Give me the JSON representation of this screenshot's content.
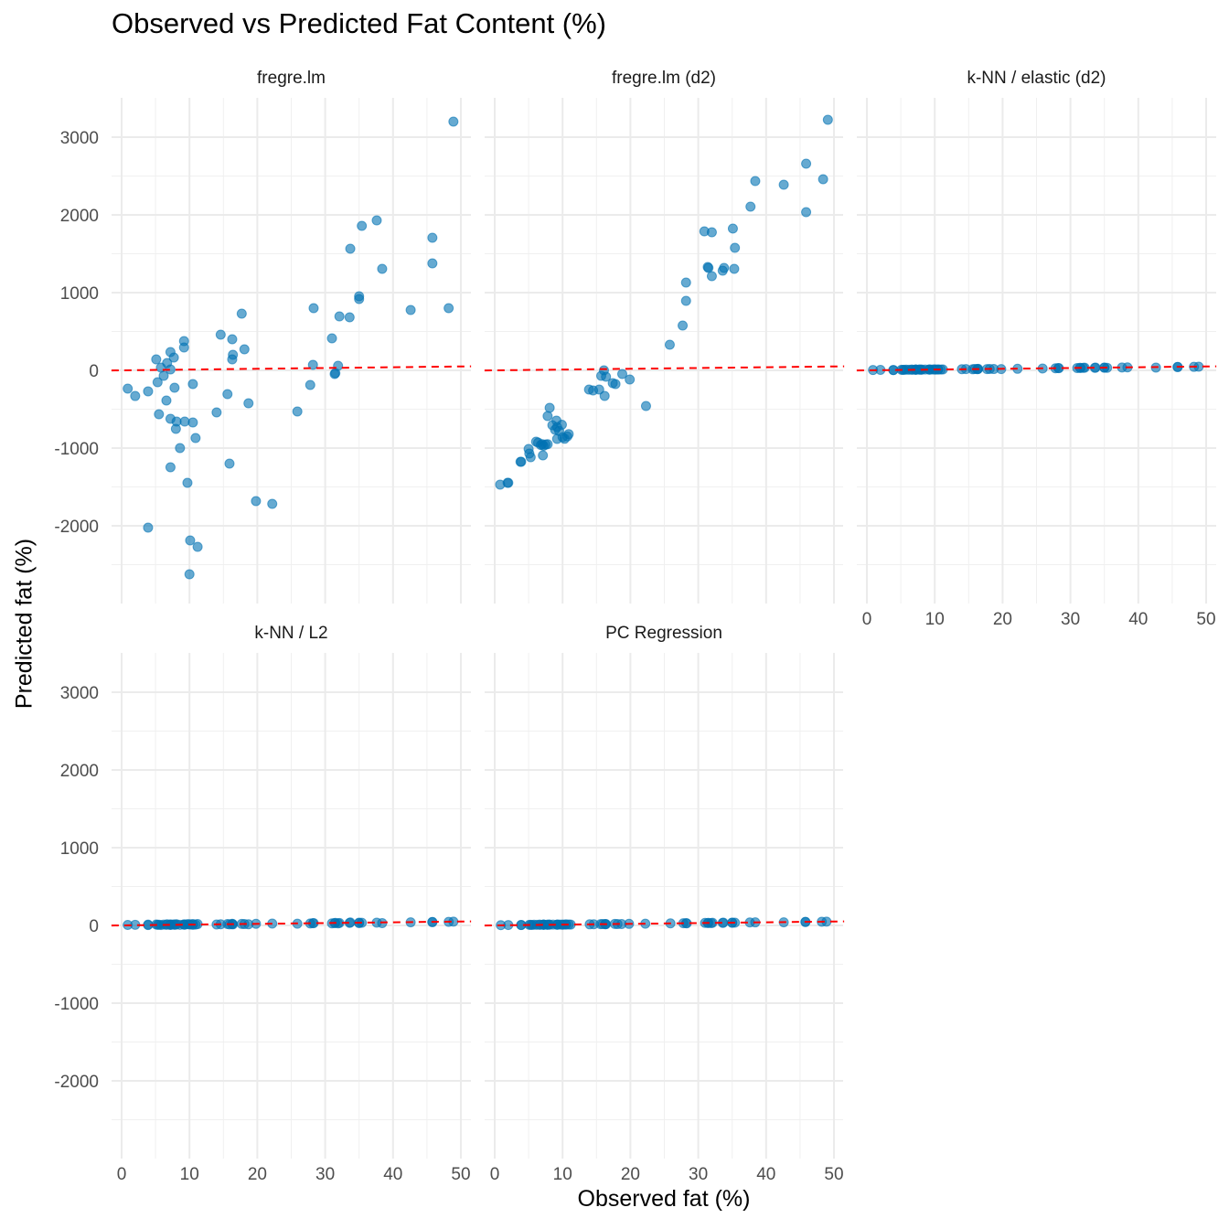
{
  "chart_data": {
    "type": "scatter",
    "title": "Observed vs Predicted Fat Content (%)",
    "xlabel": "Observed fat (%)",
    "ylabel": "Predicted fat (%)",
    "xlim": [
      -1.5,
      51.5
    ],
    "ylim": [
      -3000,
      3506
    ],
    "x_ticks": [
      0,
      10,
      20,
      30,
      40,
      50
    ],
    "y_ticks": [
      -2000,
      -1000,
      0,
      1000,
      2000,
      3000
    ],
    "grid": true,
    "reference_line": {
      "type": "y = x",
      "color": "#FF0000",
      "style": "dashed"
    },
    "point_color": "#0072B2",
    "observed": [
      0.9,
      2.0,
      3.9,
      3.9,
      5.1,
      5.3,
      5.5,
      5.8,
      6.2,
      6.6,
      6.7,
      7.2,
      7.2,
      7.2,
      7.2,
      7.7,
      7.8,
      8.0,
      8.1,
      8.6,
      9.2,
      9.2,
      9.3,
      9.7,
      10.1,
      10.0,
      10.5,
      10.5,
      10.9,
      11.2,
      14.0,
      14.6,
      15.6,
      15.9,
      16.3,
      16.3,
      16.4,
      17.7,
      18.1,
      18.7,
      19.8,
      22.2,
      25.9,
      27.8,
      28.2,
      28.3,
      31.0,
      31.4,
      31.5,
      31.9,
      32.1,
      33.6,
      33.7,
      35.0,
      35.0,
      35.4,
      37.6,
      38.4,
      42.6,
      45.8,
      45.8,
      48.2,
      48.9
    ],
    "panels": [
      {
        "name": "fregre.lm",
        "predicted": [
          -235,
          -330,
          -270,
          -2024,
          141,
          -153,
          -565,
          35,
          -71,
          -388,
          94,
          235,
          12,
          -1247,
          -624,
          165,
          -224,
          -753,
          -659,
          -1000,
          376,
          294,
          -659,
          -1447,
          -2188,
          -2624,
          -671,
          -176,
          -871,
          -2271,
          -541,
          459,
          -306,
          -1200,
          400,
          141,
          200,
          729,
          271,
          -424,
          -1682,
          -1718,
          -529,
          -188,
          71,
          800,
          412,
          -47,
          -35,
          59,
          694,
          682,
          1565,
          953,
          918,
          1859,
          1929,
          1306,
          776,
          1376,
          1706,
          800,
          3200
        ]
      },
      {
        "name": "fregre.lm (d2)",
        "observed": [
          0.8,
          1.9,
          2.0,
          3.8,
          3.9,
          5.0,
          5.1,
          5.3,
          6.1,
          6.4,
          6.8,
          7.0,
          7.2,
          7.5,
          7.8,
          7.1,
          7.8,
          8.1,
          8.5,
          8.9,
          9.2,
          9.1,
          9.2,
          9.5,
          9.9,
          10.0,
          10.3,
          10.7,
          10.9,
          13.9,
          14.5,
          15.4,
          15.7,
          16.1,
          16.2,
          16.4,
          17.4,
          17.8,
          18.8,
          19.9,
          22.3,
          25.8,
          27.7,
          28.2,
          28.2,
          30.9,
          32.0,
          31.4,
          31.5,
          32.0,
          33.6,
          33.8,
          35.1,
          35.3,
          35.4,
          37.7,
          38.4,
          42.6,
          45.9,
          45.9,
          48.4,
          49.1
        ],
        "predicted": [
          -1470,
          -1447,
          -1447,
          -1176,
          -1176,
          -1012,
          -1070,
          -1118,
          -918,
          -930,
          -960,
          -950,
          -970,
          -955,
          -950,
          -1094,
          -588,
          -482,
          -706,
          -765,
          -730,
          -647,
          -882,
          -780,
          -700,
          -860,
          -880,
          -850,
          -820,
          -247,
          -259,
          -247,
          -71,
          0,
          -329,
          -82,
          -165,
          -176,
          -47,
          -118,
          -459,
          329,
          576,
          894,
          1129,
          1788,
          1776,
          1329,
          1318,
          1212,
          1282,
          1318,
          1824,
          1306,
          1576,
          2106,
          2435,
          2388,
          2035,
          2659,
          2459,
          3224
        ]
      },
      {
        "name": "k-NN / elastic (d2)",
        "predicted": [
          4,
          6,
          5,
          3,
          8,
          6,
          7,
          9,
          8,
          10,
          7,
          11,
          9,
          8,
          10,
          9,
          12,
          8,
          11,
          10,
          9,
          12,
          10,
          11,
          9,
          13,
          12,
          10,
          11,
          12,
          15,
          16,
          14,
          18,
          17,
          15,
          19,
          16,
          18,
          17,
          16,
          20,
          24,
          27,
          29,
          28,
          30,
          33,
          31,
          32,
          34,
          33,
          35,
          34,
          36,
          33,
          37,
          38,
          36,
          44,
          42,
          45,
          47
        ]
      },
      {
        "name": "k-NN / L2",
        "predicted": [
          6,
          8,
          10,
          4,
          12,
          7,
          9,
          5,
          11,
          8,
          14,
          10,
          6,
          12,
          9,
          13,
          7,
          11,
          15,
          8,
          10,
          13,
          9,
          16,
          12,
          14,
          8,
          18,
          11,
          17,
          12,
          15,
          18,
          13,
          20,
          16,
          14,
          19,
          17,
          15,
          21,
          24,
          22,
          25,
          28,
          30,
          27,
          29,
          33,
          26,
          31,
          32,
          38,
          30,
          35,
          34,
          36,
          30,
          40,
          44,
          42,
          46,
          48
        ]
      },
      {
        "name": "PC Regression",
        "predicted": [
          3,
          5,
          6,
          4,
          7,
          8,
          6,
          9,
          7,
          10,
          8,
          9,
          11,
          7,
          10,
          9,
          8,
          12,
          9,
          10,
          11,
          8,
          12,
          10,
          11,
          9,
          13,
          10,
          12,
          11,
          14,
          15,
          16,
          17,
          15,
          18,
          16,
          19,
          17,
          18,
          20,
          22,
          26,
          28,
          29,
          27,
          32,
          31,
          33,
          30,
          34,
          33,
          35,
          34,
          36,
          35,
          38,
          39,
          40,
          44,
          45,
          47,
          48
        ]
      }
    ]
  }
}
